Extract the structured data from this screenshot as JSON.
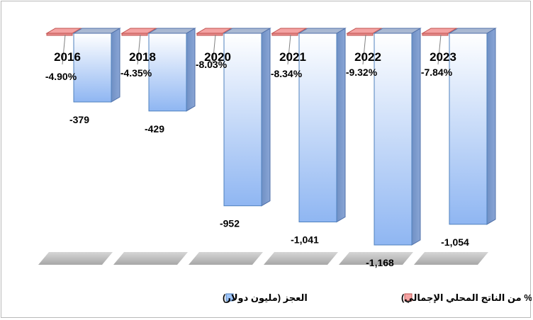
{
  "chart_data": {
    "type": "bar",
    "title": "",
    "categories": [
      "2016",
      "2018",
      "2020",
      "2021",
      "2022",
      "2023"
    ],
    "series": [
      {
        "name": "العجز (مليون دولار)",
        "values": [
          -379,
          -429,
          -952,
          -1041,
          -1168,
          -1054
        ],
        "labels": [
          "-379",
          "-429",
          "-952",
          "-1,041",
          "-1,168",
          "-1,054"
        ],
        "color": "#9dc3f7"
      },
      {
        "name": "العجز (% من الناتج المحلي الإجمالي)",
        "values": [
          -4.9,
          -4.35,
          -8.03,
          -8.34,
          -9.32,
          -7.84
        ],
        "labels": [
          "-4.90%",
          "-4.35%",
          "-8.03%",
          "-8.34%",
          "-9.32%",
          "-7.84%"
        ],
        "color": "#f4a3a3"
      }
    ],
    "ylim": [
      -1250,
      0
    ],
    "legend": "bottom",
    "grid": false
  }
}
